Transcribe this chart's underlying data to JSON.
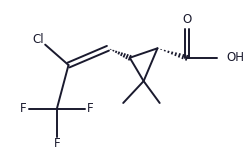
{
  "background_color": "#ffffff",
  "line_color": "#1a1a2e",
  "text_color": "#1a1a2e",
  "bond_width": 1.4,
  "figsize": [
    2.44,
    1.56
  ],
  "dpi": 100,
  "xlim": [
    -0.55,
    2.55
  ],
  "ylim": [
    -0.85,
    1.15
  ],
  "hatch_n": 8,
  "hatch_max_half": 0.04
}
